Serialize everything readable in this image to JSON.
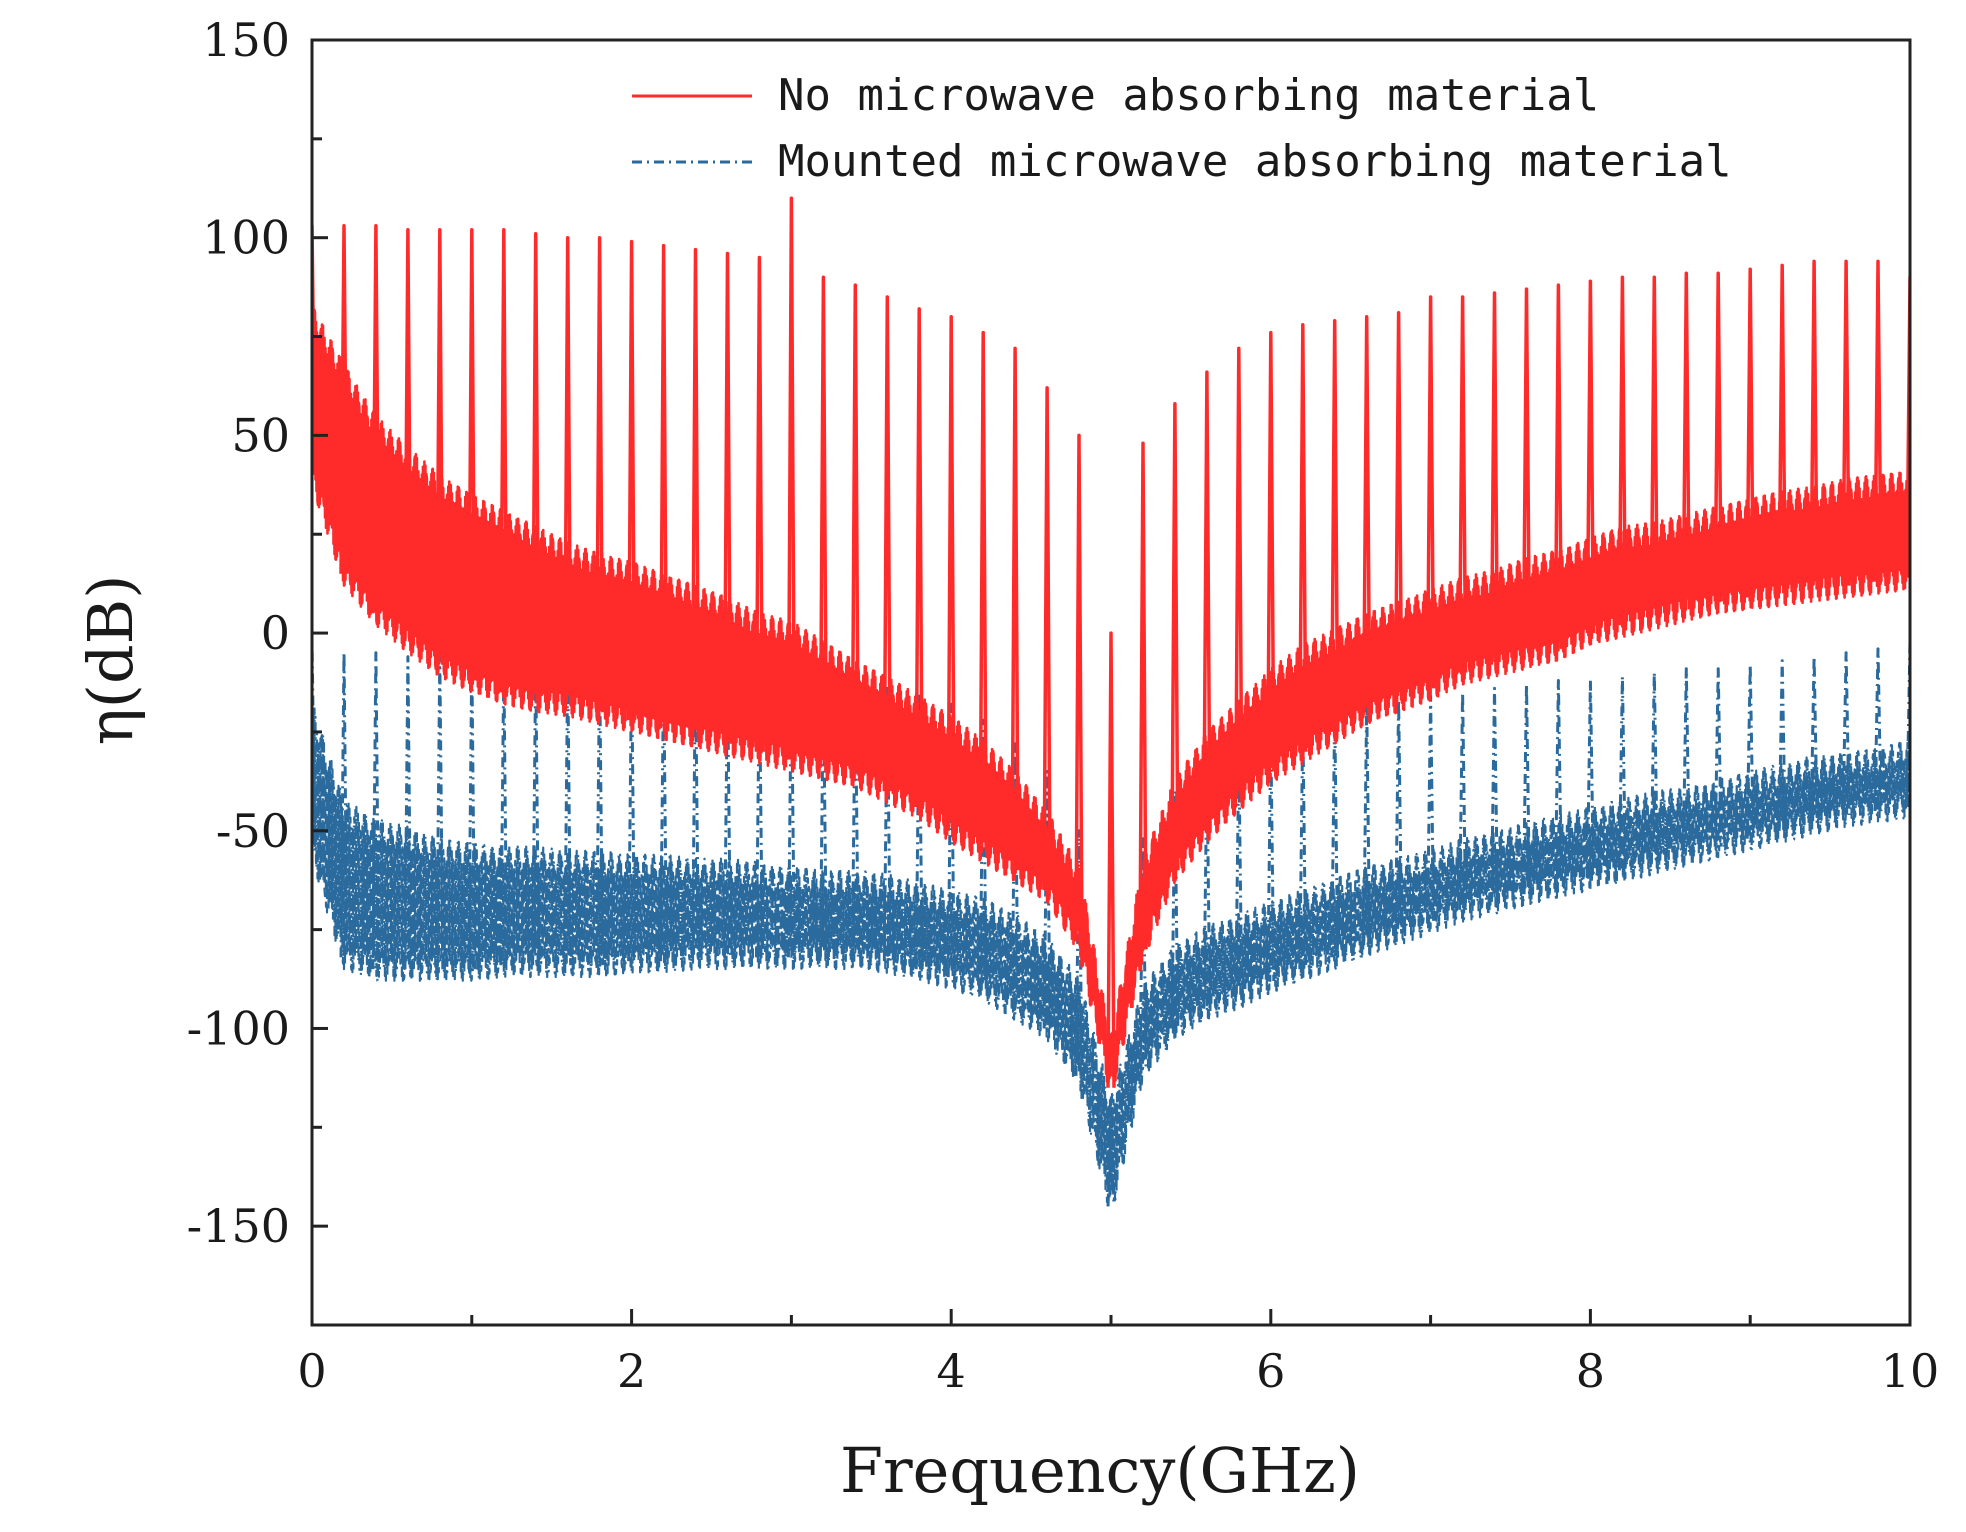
{
  "chart_data": {
    "type": "line",
    "title": "",
    "xlabel": "Frequency(GHz)",
    "ylabel": "η(dB)",
    "xlim": [
      0,
      10
    ],
    "ylim": [
      -175,
      150
    ],
    "xticks": [
      0,
      2,
      4,
      6,
      8,
      10
    ],
    "xtick_labels": [
      "0",
      "2",
      "4",
      "6",
      "8",
      "10"
    ],
    "yticks": [
      150,
      100,
      50,
      0,
      -50,
      -100,
      -150
    ],
    "ytick_labels": [
      "150",
      "100",
      "50",
      "0",
      "-50",
      "-100",
      "-150"
    ],
    "legend_position": "top-right",
    "grid": false,
    "series": [
      {
        "name": "No microwave absorbing material",
        "color": "#ff2b2b",
        "style": "solid",
        "x": [
          0,
          0.2,
          0.4,
          0.6,
          0.8,
          1.0,
          1.2,
          1.4,
          1.6,
          1.8,
          2.0,
          2.2,
          2.4,
          2.6,
          2.8,
          3.0,
          3.2,
          3.4,
          3.6,
          3.8,
          4.0,
          4.2,
          4.4,
          4.6,
          4.8,
          5.0,
          5.2,
          5.4,
          5.6,
          5.8,
          6.0,
          6.2,
          6.4,
          6.6,
          6.8,
          7.0,
          7.2,
          7.4,
          7.6,
          7.8,
          8.0,
          8.2,
          8.4,
          8.6,
          8.8,
          9.0,
          9.2,
          9.4,
          9.6,
          9.8,
          10.0
        ],
        "upper": [
          80,
          65,
          52,
          44,
          37,
          32,
          28,
          24,
          20,
          17,
          15,
          12,
          9,
          6,
          2,
          0,
          -5,
          -10,
          -14,
          -19,
          -24,
          -30,
          -38,
          -48,
          -62,
          -105,
          -60,
          -40,
          -28,
          -20,
          -12,
          -6,
          -2,
          2,
          5,
          8,
          11,
          13,
          16,
          18,
          21,
          24,
          25,
          27,
          29,
          31,
          33,
          34,
          36,
          37,
          38
        ],
        "lower": [
          40,
          15,
          5,
          -2,
          -8,
          -12,
          -15,
          -17,
          -18,
          -20,
          -22,
          -24,
          -26,
          -28,
          -30,
          -32,
          -34,
          -36,
          -40,
          -44,
          -50,
          -55,
          -60,
          -65,
          -78,
          -115,
          -80,
          -60,
          -50,
          -42,
          -35,
          -30,
          -25,
          -20,
          -17,
          -14,
          -10,
          -8,
          -6,
          -4,
          0,
          2,
          4,
          6,
          8,
          9,
          10,
          11,
          12,
          13,
          14
        ],
        "peaks": [
          103,
          103,
          103,
          102,
          102,
          102,
          102,
          101,
          100,
          100,
          99,
          98,
          97,
          96,
          95,
          110,
          90,
          88,
          85,
          82,
          80,
          76,
          72,
          62,
          50,
          0,
          48,
          58,
          66,
          72,
          76,
          78,
          79,
          80,
          81,
          85,
          85,
          86,
          87,
          88,
          89,
          90,
          90,
          91,
          91,
          92,
          93,
          94,
          94,
          94,
          90
        ]
      },
      {
        "name": "Mounted microwave absorbing material",
        "color": "#2b6a9c",
        "style": "dash-dot",
        "x": [
          0,
          0.2,
          0.4,
          0.6,
          0.8,
          1.0,
          1.2,
          1.4,
          1.6,
          1.8,
          2.0,
          2.2,
          2.4,
          2.6,
          2.8,
          3.0,
          3.2,
          3.4,
          3.6,
          3.8,
          4.0,
          4.2,
          4.4,
          4.6,
          4.8,
          5.0,
          5.2,
          5.4,
          5.6,
          5.8,
          6.0,
          6.2,
          6.4,
          6.6,
          6.8,
          7.0,
          7.2,
          7.4,
          7.6,
          7.8,
          8.0,
          8.2,
          8.4,
          8.6,
          8.8,
          9.0,
          9.2,
          9.4,
          9.6,
          9.8,
          10.0
        ],
        "upper": [
          -20,
          -45,
          -50,
          -52,
          -55,
          -56,
          -57,
          -57,
          -58,
          -58,
          -59,
          -59,
          -60,
          -60,
          -61,
          -62,
          -63,
          -63,
          -64,
          -66,
          -68,
          -70,
          -74,
          -80,
          -90,
          -120,
          -92,
          -82,
          -77,
          -74,
          -71,
          -68,
          -65,
          -62,
          -60,
          -58,
          -55,
          -53,
          -51,
          -49,
          -47,
          -45,
          -43,
          -42,
          -40,
          -38,
          -36,
          -34,
          -33,
          -32,
          -30
        ],
        "lower": [
          -55,
          -82,
          -85,
          -85,
          -85,
          -85,
          -84,
          -84,
          -84,
          -84,
          -83,
          -83,
          -82,
          -82,
          -82,
          -82,
          -82,
          -82,
          -83,
          -85,
          -87,
          -90,
          -95,
          -100,
          -112,
          -145,
          -110,
          -100,
          -95,
          -92,
          -88,
          -85,
          -82,
          -79,
          -76,
          -73,
          -70,
          -68,
          -66,
          -64,
          -62,
          -60,
          -58,
          -56,
          -54,
          -52,
          -50,
          -48,
          -46,
          -45,
          -44
        ],
        "peaks": [
          -2,
          -5,
          -5,
          -6,
          -6,
          -6,
          -7,
          -7,
          -8,
          -8,
          -8,
          -9,
          -9,
          -10,
          -10,
          -10,
          -12,
          -13,
          -14,
          -15,
          -18,
          -22,
          -28,
          -35,
          -50,
          -120,
          -52,
          -40,
          -34,
          -30,
          -26,
          -22,
          -20,
          -18,
          -17,
          -16,
          -15,
          -14,
          -13,
          -12,
          -12,
          -11,
          -10,
          -9,
          -9,
          -8,
          -7,
          -6,
          -5,
          -4,
          -2
        ]
      }
    ]
  }
}
